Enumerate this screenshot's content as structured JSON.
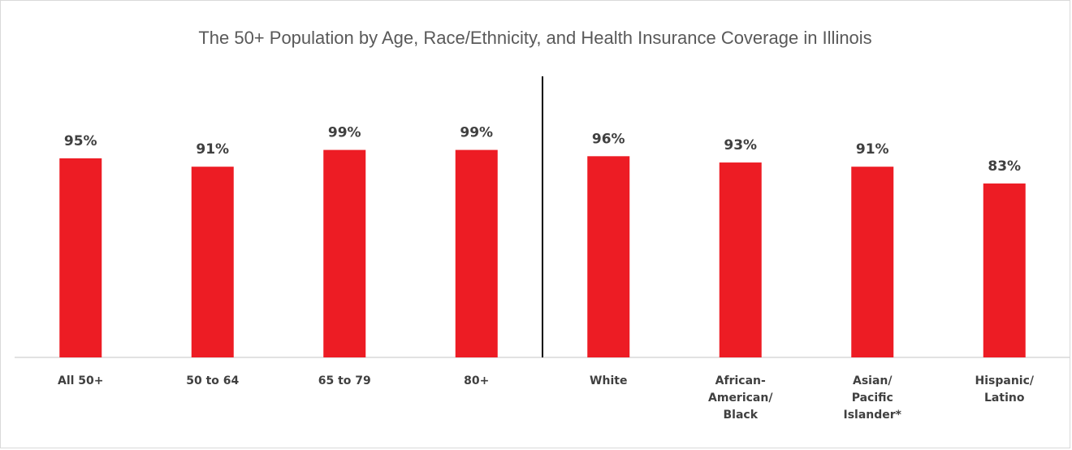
{
  "chart_data": {
    "type": "bar",
    "title": "The 50+ Population by Age, Race/Ethnicity, and Health Insurance Coverage in Illinois",
    "categories": [
      [
        "All 50+"
      ],
      [
        "50 to 64"
      ],
      [
        "65 to 79"
      ],
      [
        "80+"
      ],
      [
        "White"
      ],
      [
        "African-",
        "American/",
        "Black"
      ],
      [
        "Asian/",
        "Pacific",
        "Islander*"
      ],
      [
        "Hispanic/",
        "Latino"
      ]
    ],
    "values": [
      95,
      91,
      99,
      99,
      96,
      93,
      91,
      83
    ],
    "data_labels": [
      "95%",
      "91%",
      "99%",
      "99%",
      "96%",
      "93%",
      "91%",
      "83%"
    ],
    "ylim": [
      0,
      100
    ],
    "bar_color": "#ed1c24",
    "grid": false,
    "group_separator_after_index": 3
  }
}
